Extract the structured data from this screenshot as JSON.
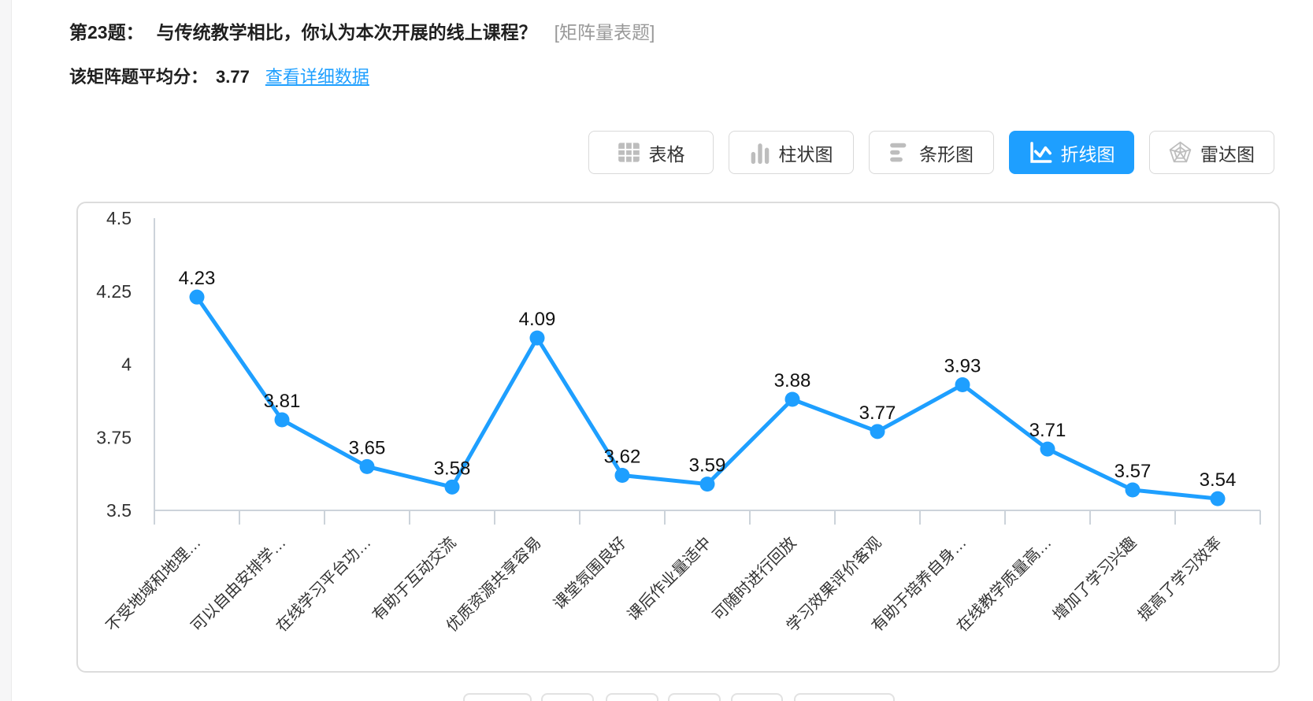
{
  "page": {
    "question_header": {
      "number_label": "第23题：",
      "question_text": "与传统教学相比，你认为本次开展的线上课程？",
      "type_tag": "[矩阵量表题]"
    },
    "summary": {
      "avg_label": "该矩阵题平均分：",
      "avg_value": "3.77",
      "detail_link": "查看详细数据"
    },
    "chart_toolbar": {
      "buttons": [
        {
          "label": "表格",
          "icon": "table-icon",
          "active": false
        },
        {
          "label": "柱状图",
          "icon": "column-chart-icon",
          "active": false
        },
        {
          "label": "条形图",
          "icon": "bar-chart-icon",
          "active": false
        },
        {
          "label": "折线图",
          "icon": "line-chart-icon",
          "active": true
        },
        {
          "label": "雷达图",
          "icon": "radar-chart-icon",
          "active": false
        }
      ]
    }
  },
  "colors": {
    "accent_blue": "#1E9FFF",
    "axis_gray": "#ccd3da",
    "text_dark": "#333333",
    "label_black": "#111111",
    "muted_gray": "#999999",
    "border_gray": "#dcdcdc",
    "icon_gray": "#bdbdbd"
  },
  "chart_data": {
    "type": "line",
    "title": "",
    "xlabel": "",
    "ylabel": "",
    "categories": [
      "不受地域和地理…",
      "可以自由安排学…",
      "在线学习平台功…",
      "有助于互动交流",
      "优质资源共享容易",
      "课堂氛围良好",
      "课后作业量适中",
      "可随时进行回放",
      "学习效果评价客观",
      "有助于培养自身…",
      "在线教学质量高…",
      "增加了学习兴趣",
      "提高了学习效率"
    ],
    "values": [
      4.23,
      3.81,
      3.65,
      3.58,
      4.09,
      3.62,
      3.59,
      3.88,
      3.77,
      3.93,
      3.71,
      3.57,
      3.54
    ],
    "ylim": [
      3.5,
      4.5
    ],
    "yticks": [
      "3.5",
      "3.75",
      "4",
      "4.25",
      "4.5"
    ],
    "grid": false,
    "legend": "none",
    "point_labels": true,
    "x_label_rotation_deg": 45
  }
}
